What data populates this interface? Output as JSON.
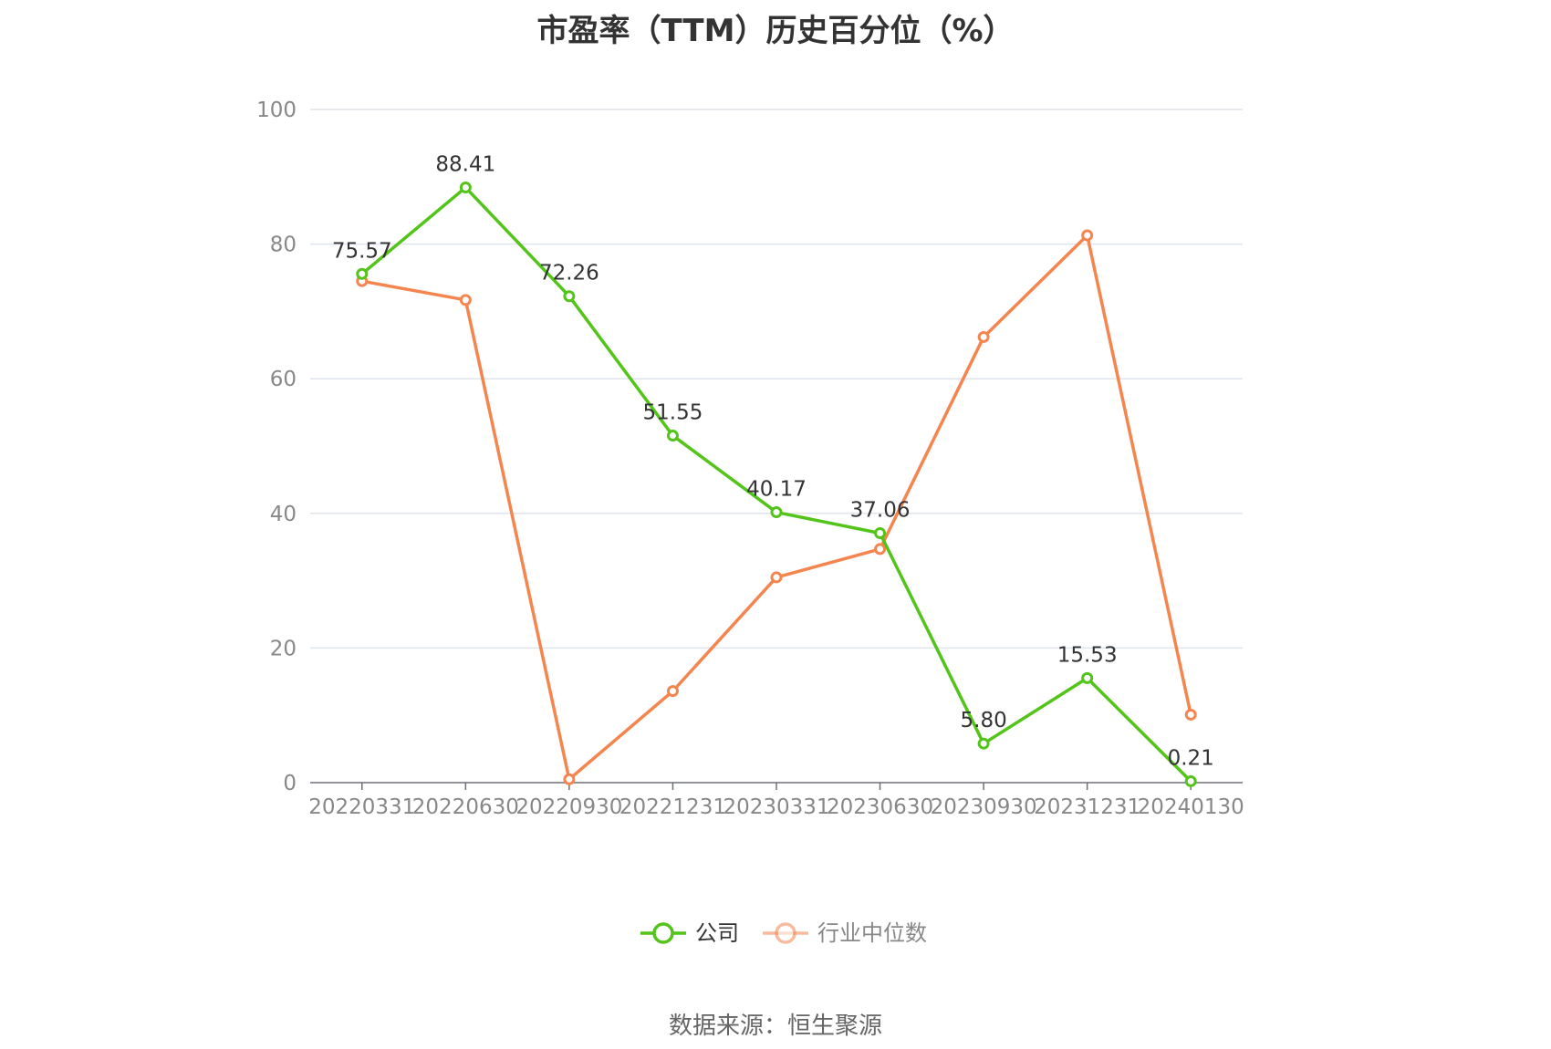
{
  "title": "市盈率（TTM）历史百分位（%）",
  "source": "数据来源：恒生聚源",
  "chart_data": {
    "type": "line",
    "title": "市盈率（TTM）历史百分位（%）",
    "categories": [
      "20220331",
      "20220630",
      "20220930",
      "20221231",
      "20230331",
      "20230630",
      "20230930",
      "20231231",
      "20240130"
    ],
    "ylim": [
      0,
      100
    ],
    "yticks": [
      0,
      20,
      40,
      60,
      80,
      100
    ],
    "grid": true,
    "legend_position": "bottom",
    "series": [
      {
        "name": "公司",
        "color": "#52c41a",
        "values": [
          75.57,
          88.41,
          72.26,
          51.55,
          40.17,
          37.06,
          5.8,
          15.53,
          0.21
        ],
        "labels": [
          "75.57",
          "88.41",
          "72.26",
          "51.55",
          "40.17",
          "37.06",
          "5.80",
          "15.53",
          "0.21"
        ],
        "show_labels": true
      },
      {
        "name": "行业中位数",
        "color": "#f5854f",
        "values": [
          74.5,
          71.7,
          0.5,
          13.6,
          30.5,
          34.7,
          66.2,
          81.3,
          10.1
        ],
        "show_labels": false
      }
    ]
  }
}
